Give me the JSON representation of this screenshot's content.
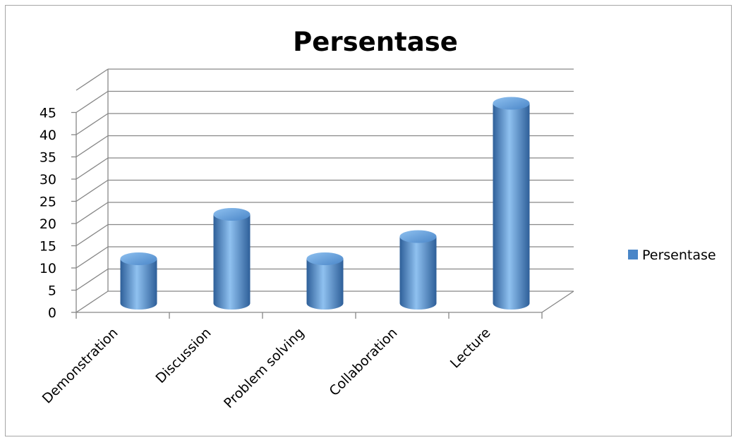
{
  "chart_data": {
    "type": "bar",
    "style": "3d-cylinder",
    "title": "Persentase",
    "categories": [
      "Demonstration",
      "Discussion",
      "Problem solving",
      "Collaboration",
      "Lecture"
    ],
    "series": [
      {
        "name": "Persentase",
        "values": [
          10,
          20,
          10,
          15,
          45
        ]
      }
    ],
    "ylim": [
      0,
      45
    ],
    "yticks": [
      "0",
      "5",
      "10",
      "15",
      "20",
      "25",
      "30",
      "35",
      "40",
      "45"
    ],
    "grid": true,
    "legend_position": "right",
    "colors": {
      "bar": "#4a86c8",
      "bar_light": "#8fc1f0",
      "bar_dark": "#2e5f99",
      "grid": "#878787",
      "axis": "#878787"
    }
  }
}
